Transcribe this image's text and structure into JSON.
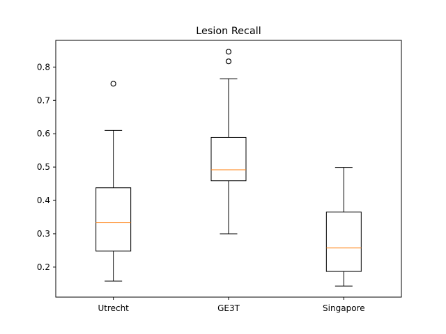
{
  "chart_data": {
    "type": "box",
    "title": "Lesion Recall",
    "xlabel": "",
    "ylabel": "",
    "categories": [
      "Utrecht",
      "GE3T",
      "Singapore"
    ],
    "boxes": [
      {
        "name": "Utrecht",
        "whisker_low": 0.158,
        "q1": 0.248,
        "median": 0.334,
        "q3": 0.438,
        "whisker_high": 0.61,
        "outliers": [
          0.75
        ]
      },
      {
        "name": "GE3T",
        "whisker_low": 0.3,
        "q1": 0.459,
        "median": 0.492,
        "q3": 0.589,
        "whisker_high": 0.765,
        "outliers": [
          0.817,
          0.846
        ]
      },
      {
        "name": "Singapore",
        "whisker_low": 0.143,
        "q1": 0.187,
        "median": 0.258,
        "q3": 0.365,
        "whisker_high": 0.499,
        "outliers": []
      }
    ],
    "ylim": [
      0.11,
      0.88
    ],
    "yticks": [
      0.2,
      0.3,
      0.4,
      0.5,
      0.6,
      0.7,
      0.8
    ],
    "ytick_labels": [
      "0.2",
      "0.3",
      "0.4",
      "0.5",
      "0.6",
      "0.7",
      "0.8"
    ],
    "grid": false,
    "colors": {
      "box": "#000000",
      "median": "#ff7f0e",
      "outlier": "#000000",
      "background": "#ffffff"
    }
  }
}
